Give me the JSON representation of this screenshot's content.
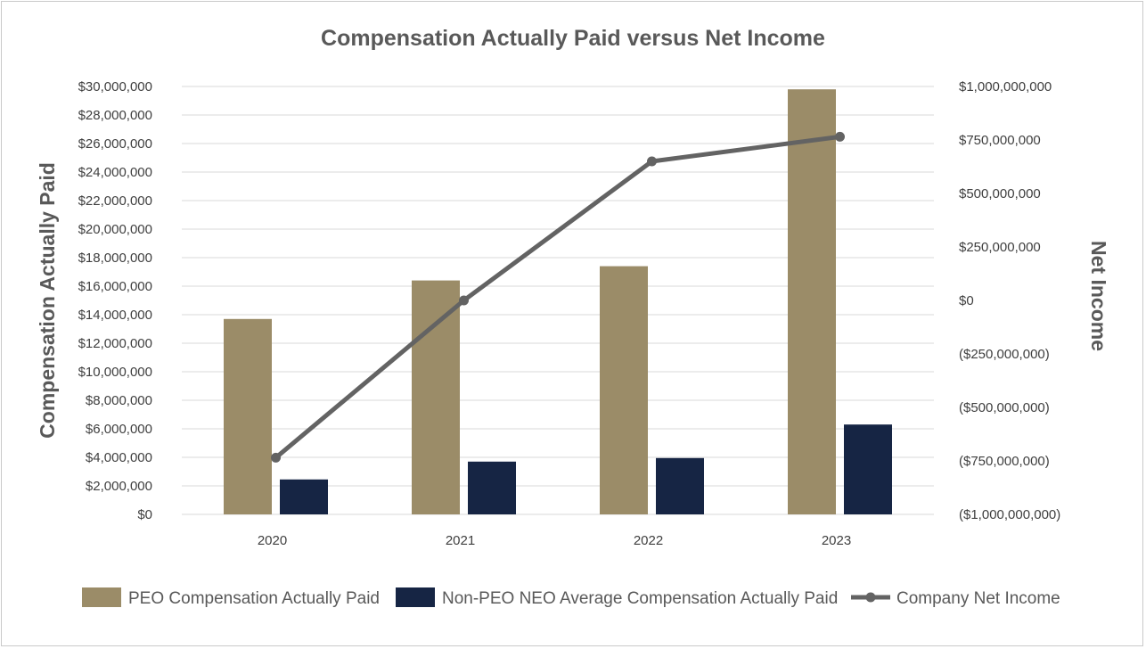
{
  "chart_data": {
    "type": "bar",
    "title": "Compensation Actually Paid versus Net Income",
    "categories": [
      "2020",
      "2021",
      "2022",
      "2023"
    ],
    "ylabel": "Compensation Actually Paid",
    "y2label": "Net Income",
    "ylim": [
      0,
      30000000
    ],
    "y2lim": [
      -1000000000,
      1000000000
    ],
    "y_ticks": [
      "$0",
      "$2,000,000",
      "$4,000,000",
      "$6,000,000",
      "$8,000,000",
      "$10,000,000",
      "$12,000,000",
      "$14,000,000",
      "$16,000,000",
      "$18,000,000",
      "$20,000,000",
      "$22,000,000",
      "$24,000,000",
      "$26,000,000",
      "$28,000,000",
      "$30,000,000"
    ],
    "y2_ticks": [
      "($1,000,000,000)",
      "($750,000,000)",
      "($500,000,000)",
      "($250,000,000)",
      "$0",
      "$250,000,000",
      "$500,000,000",
      "$750,000,000",
      "$1,000,000,000"
    ],
    "grid": true,
    "legend_position": "bottom",
    "series": [
      {
        "name": "PEO Compensation Actually Paid",
        "kind": "bar",
        "axis": "left",
        "color": "#9b8c68",
        "values": [
          13700000,
          16400000,
          17400000,
          29800000
        ]
      },
      {
        "name": "Non-PEO NEO Average Compensation Actually Paid",
        "kind": "bar",
        "axis": "left",
        "color": "#162544",
        "values": [
          2450000,
          3700000,
          3950000,
          6300000
        ]
      },
      {
        "name": "Company Net Income",
        "kind": "line",
        "axis": "right",
        "color": "#636363",
        "values": [
          -735000000,
          0,
          650000000,
          765000000
        ]
      }
    ]
  }
}
